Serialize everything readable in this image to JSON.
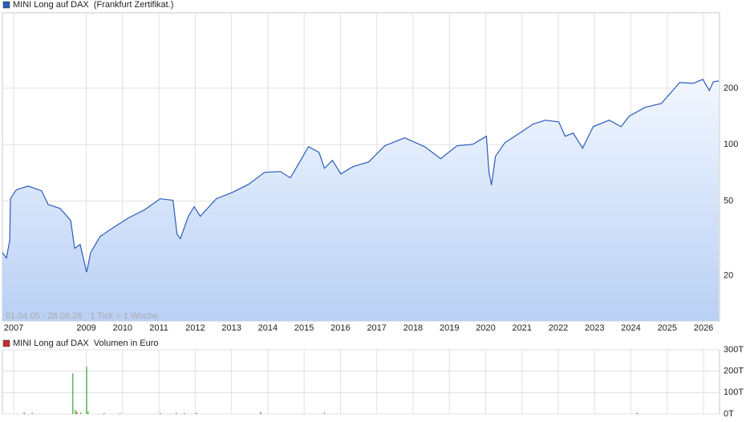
{
  "chart_data": [
    {
      "type": "line",
      "title": "MINI Long auf DAX",
      "subtitle": "(Frankfurt Zertifikat.)",
      "annotations": [
        "01.04.05 - 26.06.26",
        "1 Tick = 1 Woche"
      ],
      "log_scale": true,
      "grid": true,
      "x": [
        2006.69,
        2006.8,
        2006.89,
        2006.91,
        2007.07,
        2007.4,
        2007.77,
        2007.95,
        2008.28,
        2008.57,
        2008.68,
        2008.83,
        2009.01,
        2009.12,
        2009.38,
        2009.71,
        2010.16,
        2010.6,
        2011.04,
        2011.39,
        2011.5,
        2011.59,
        2011.81,
        2011.97,
        2012.14,
        2012.58,
        2013.03,
        2013.47,
        2013.91,
        2014.35,
        2014.62,
        2014.84,
        2015.12,
        2015.41,
        2015.56,
        2015.78,
        2016.01,
        2016.34,
        2016.78,
        2017.22,
        2017.77,
        2018.32,
        2018.76,
        2019.21,
        2019.65,
        2020.02,
        2020.09,
        2020.16,
        2020.27,
        2020.53,
        2020.97,
        2021.3,
        2021.64,
        2022.01,
        2022.19,
        2022.41,
        2022.67,
        2022.96,
        2023.4,
        2023.73,
        2023.95,
        2024.39,
        2024.84,
        2025.17,
        2025.34,
        2025.72,
        2025.98,
        2026.16,
        2026.27,
        2026.42
      ],
      "series": [
        {
          "name": "MINI Long auf DAX",
          "color": "#2a5cb8",
          "values": [
            26.6,
            24.9,
            30.8,
            51.5,
            57.4,
            60.2,
            56.8,
            48.0,
            45.7,
            39.5,
            28.0,
            29.4,
            20.9,
            26.6,
            32.4,
            35.8,
            40.7,
            44.9,
            51.5,
            50.5,
            33.4,
            31.5,
            41.5,
            46.7,
            41.5,
            51.5,
            55.7,
            61.5,
            71.2,
            71.9,
            66.5,
            78.6,
            97.6,
            91.0,
            74.8,
            82.5,
            69.8,
            76.3,
            80.9,
            98.6,
            108.7,
            97.6,
            84.1,
            98.6,
            100.5,
            110.9,
            71.2,
            60.9,
            86.7,
            102.5,
            116.4,
            128.5,
            135.0,
            132.3,
            110.9,
            115.3,
            95.7,
            124.7,
            135.0,
            124.7,
            141.7,
            158.0,
            165.9,
            196.1,
            214.3,
            212.2,
            222.8,
            194.2,
            216.3,
            218.6
          ]
        }
      ],
      "xlim": [
        2006.69,
        2026.44
      ],
      "xticks": [
        2007,
        2009,
        2010,
        2011,
        2012,
        2013,
        2014,
        2015,
        2016,
        2017,
        2018,
        2019,
        2020,
        2021,
        2022,
        2023,
        2024,
        2025,
        2026
      ],
      "ylim": [
        11.5,
        504
      ],
      "yticks": [
        20,
        50,
        100,
        200
      ]
    },
    {
      "type": "bar",
      "title": "MINI Long auf DAX",
      "subtitle": "Volumen in Euro",
      "grid": true,
      "x": [
        2007.29,
        2007.51,
        2008.63,
        2008.7,
        2008.74,
        2008.85,
        2009.01,
        2009.05,
        2009.49,
        2009.93,
        2011.04,
        2011.48,
        2011.7,
        2012.03,
        2013.8,
        2015.56,
        2024.17
      ],
      "series": [
        {
          "name": "MINI Long auf DAX",
          "color": "#c03030",
          "values": [
            8000,
            5000,
            190000,
            20000,
            10000,
            8000,
            220000,
            12000,
            4000,
            4000,
            4000,
            6000,
            4000,
            5000,
            8000,
            6000,
            5000
          ],
          "colors": [
            "#33aa33",
            "#33aa33",
            "#33aa33",
            "#33aa33",
            "#c03030",
            "#33aa33",
            "#33aa33",
            "#33aa33",
            "#c03030",
            "#33aa33",
            "#c03030",
            "#33aa33",
            "#c03030",
            "#c03030",
            "#c03030",
            "#33aa33",
            "#c03030"
          ]
        }
      ],
      "xlim": [
        2006.69,
        2026.44
      ],
      "xticks": [
        2007,
        2009,
        2010,
        2011,
        2012,
        2013,
        2014,
        2015,
        2016,
        2017,
        2018,
        2019,
        2020,
        2021,
        2022,
        2023,
        2024,
        2025,
        2026
      ],
      "ylim": [
        0,
        300000
      ],
      "yticks": [
        {
          "value": 0,
          "label": "0T"
        },
        {
          "value": 100000,
          "label": "100T"
        },
        {
          "value": 200000,
          "label": "200T"
        },
        {
          "value": 300000,
          "label": "300T"
        }
      ]
    }
  ]
}
